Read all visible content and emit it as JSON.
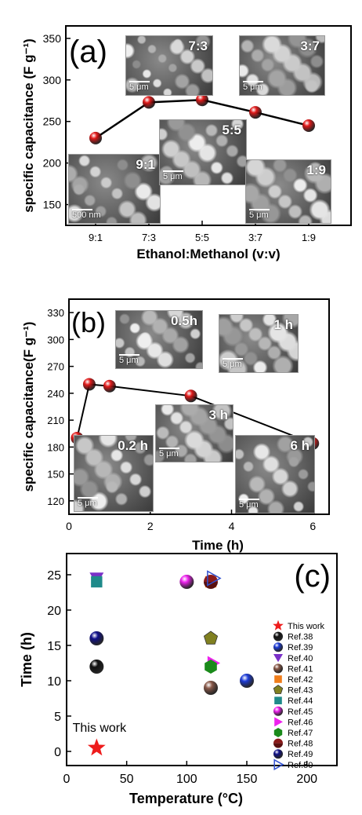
{
  "chart_data": [
    {
      "panel": "(a)",
      "type": "line",
      "categories": [
        "9:1",
        "7:3",
        "5:5",
        "3:7",
        "1:9"
      ],
      "values": [
        230,
        273,
        276,
        261,
        245
      ],
      "ylabel": "specific capacitance (F g⁻¹)",
      "xlabel": "Ethanol:Methanol (v:v)",
      "ylim": [
        125,
        365
      ],
      "yticks": [
        150,
        200,
        250,
        300,
        350
      ],
      "series_color": "#e21a1a",
      "insets": [
        {
          "label": "9:1",
          "scale": "500 nm"
        },
        {
          "label": "7:3",
          "scale": "5 μm"
        },
        {
          "label": "5:5",
          "scale": "5 μm"
        },
        {
          "label": "3:7",
          "scale": "5 μm"
        },
        {
          "label": "1:9",
          "scale": "5 μm"
        }
      ]
    },
    {
      "panel": "(b)",
      "type": "line",
      "x": [
        0.2,
        0.5,
        1,
        3,
        6
      ],
      "values": [
        190,
        250,
        248,
        237,
        184
      ],
      "ylabel": "specific capacitance(F g⁻¹)",
      "xlabel": "Time (h)",
      "xlim": [
        0,
        6.4
      ],
      "ylim": [
        105,
        345
      ],
      "xticks": [
        0,
        2,
        4,
        6
      ],
      "yticks": [
        120,
        150,
        180,
        210,
        240,
        270,
        300,
        330
      ],
      "series_color": "#e21a1a",
      "insets": [
        {
          "label": "0.2 h",
          "scale": "5 μm"
        },
        {
          "label": "0.5h",
          "scale": "5 μm"
        },
        {
          "label": "1 h",
          "scale": "5 μm"
        },
        {
          "label": "3 h",
          "scale": "5 μm"
        },
        {
          "label": "6 h",
          "scale": "5 μm"
        }
      ]
    },
    {
      "panel": "(c)",
      "type": "scatter",
      "xlabel": "Temperature (°C)",
      "ylabel": "Time (h)",
      "xlim": [
        0,
        225
      ],
      "ylim": [
        -2,
        28
      ],
      "xticks": [
        0,
        50,
        100,
        150,
        200
      ],
      "yticks": [
        0,
        5,
        10,
        15,
        20,
        25
      ],
      "annotation": "This work",
      "legend_position": "right",
      "series": [
        {
          "name": "This work",
          "marker": "star",
          "color": "#ee1c1c",
          "points": [
            [
              25,
              0.5
            ]
          ]
        },
        {
          "name": "Ref.38",
          "marker": "sphere",
          "color": "#111111",
          "points": [
            [
              25,
              12
            ]
          ]
        },
        {
          "name": "Ref.39",
          "marker": "sphere",
          "color": "#1d3cd8",
          "points": [
            [
              150,
              10
            ]
          ]
        },
        {
          "name": "Ref.40",
          "marker": "tri-down",
          "color": "#7a30c8",
          "points": [
            [
              25,
              24.5
            ]
          ]
        },
        {
          "name": "Ref.41",
          "marker": "sphere",
          "color": "#8a5a4a",
          "points": [
            [
              120,
              9
            ]
          ]
        },
        {
          "name": "Ref.42",
          "marker": "square",
          "color": "#f07d1a",
          "points": [
            [
              120,
              24
            ]
          ]
        },
        {
          "name": "Ref.43",
          "marker": "pentagon",
          "color": "#808020",
          "points": [
            [
              120,
              16
            ]
          ]
        },
        {
          "name": "Ref.44",
          "marker": "square",
          "color": "#1e8a8a",
          "points": [
            [
              25,
              24
            ]
          ]
        },
        {
          "name": "Ref.45",
          "marker": "sphere",
          "color": "#ee22ee",
          "points": [
            [
              100,
              24
            ]
          ]
        },
        {
          "name": "Ref.46",
          "marker": "tri-right",
          "color": "#ee22ee",
          "points": [
            [
              122,
              12.5
            ]
          ]
        },
        {
          "name": "Ref.47",
          "marker": "hexagon",
          "color": "#1a8a1a",
          "points": [
            [
              120,
              12
            ]
          ]
        },
        {
          "name": "Ref.48",
          "marker": "half-circle",
          "color": "#8a1a1a",
          "points": [
            [
              120,
              24
            ]
          ]
        },
        {
          "name": "Ref.49",
          "marker": "sphere",
          "color": "#10108a",
          "points": [
            [
              25,
              16
            ]
          ]
        },
        {
          "name": "Ref.50",
          "marker": "tri-right-open",
          "color": "#3050d0",
          "points": [
            [
              122,
              24.5
            ]
          ]
        }
      ]
    }
  ]
}
